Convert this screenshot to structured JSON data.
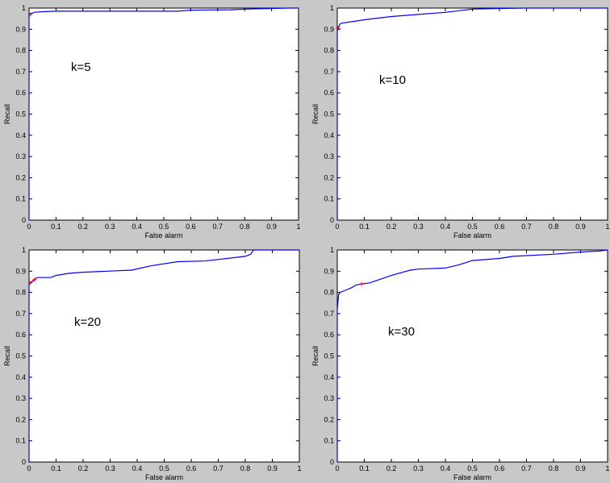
{
  "figure": {
    "background": "#c8c8c8",
    "plot_background": "#ffffff",
    "axis_color": "#000000",
    "curve_color": "#0000ff",
    "marker_color": "#ff0000"
  },
  "chart_data": [
    {
      "type": "line",
      "annotation": "k=5",
      "xlabel": "False alarm",
      "ylabel": "Recall",
      "xlim": [
        0,
        1
      ],
      "ylim": [
        0,
        1
      ],
      "xticks": [
        "0",
        "0.1",
        "0.2",
        "0.3",
        "0.4",
        "0.5",
        "0.6",
        "0.7",
        "0.8",
        "0.9",
        "1"
      ],
      "yticks": [
        "0",
        "0.1",
        "0.2",
        "0.3",
        "0.4",
        "0.5",
        "0.6",
        "0.7",
        "0.8",
        "0.9",
        "1"
      ],
      "grid": false,
      "series": [
        {
          "x": [
            0,
            0,
            0.01,
            0.02,
            0.05,
            0.1,
            0.55,
            0.6,
            0.75,
            0.8,
            0.9,
            0.97,
            1.0
          ],
          "y": [
            0,
            0.97,
            0.975,
            0.98,
            0.983,
            0.985,
            0.985,
            0.99,
            0.992,
            0.995,
            0.998,
            1.0,
            1.0
          ]
        }
      ],
      "markers": [
        {
          "x": 0.005,
          "y": 0.97
        }
      ]
    },
    {
      "type": "line",
      "annotation": "k=10",
      "xlabel": "False alarm",
      "ylabel": "Recall",
      "xlim": [
        0,
        1
      ],
      "ylim": [
        0,
        1
      ],
      "xticks": [
        "0",
        "0.1",
        "0.2",
        "0.3",
        "0.4",
        "0.5",
        "0.6",
        "0.7",
        "0.8",
        "0.9",
        "1"
      ],
      "yticks": [
        "0",
        "0.1",
        "0.2",
        "0.3",
        "0.4",
        "0.5",
        "0.6",
        "0.7",
        "0.8",
        "0.9",
        "1"
      ],
      "grid": false,
      "series": [
        {
          "x": [
            0,
            0,
            0.005,
            0.01,
            0.02,
            0.05,
            0.1,
            0.2,
            0.3,
            0.4,
            0.5,
            0.6,
            0.7,
            0.8,
            0.85,
            1.0
          ],
          "y": [
            0,
            0.9,
            0.91,
            0.925,
            0.93,
            0.935,
            0.945,
            0.96,
            0.97,
            0.98,
            0.995,
            0.998,
            1.0,
            1.0,
            1.0,
            1.0
          ]
        }
      ],
      "markers": [
        {
          "x": 0.003,
          "y": 0.905
        }
      ]
    },
    {
      "type": "line",
      "annotation": "k=20",
      "xlabel": "False alarm",
      "ylabel": "Recall",
      "xlim": [
        0,
        1
      ],
      "ylim": [
        0,
        1
      ],
      "xticks": [
        "0",
        "0.1",
        "0.2",
        "0.3",
        "0.4",
        "0.5",
        "0.6",
        "0.7",
        "0.8",
        "0.9",
        "1"
      ],
      "yticks": [
        "0",
        "0.1",
        "0.2",
        "0.3",
        "0.4",
        "0.5",
        "0.6",
        "0.7",
        "0.8",
        "0.9",
        "1"
      ],
      "grid": false,
      "series": [
        {
          "x": [
            0,
            0,
            0.01,
            0.02,
            0.03,
            0.08,
            0.1,
            0.15,
            0.2,
            0.38,
            0.45,
            0.55,
            0.65,
            0.8,
            0.82,
            0.83,
            1.0
          ],
          "y": [
            0,
            0.84,
            0.85,
            0.86,
            0.87,
            0.87,
            0.88,
            0.89,
            0.895,
            0.905,
            0.925,
            0.945,
            0.948,
            0.97,
            0.98,
            1.0,
            1.0
          ]
        }
      ],
      "markers": [
        {
          "x": 0.005,
          "y": 0.845
        },
        {
          "x": 0.02,
          "y": 0.86
        }
      ]
    },
    {
      "type": "line",
      "annotation": "k=30",
      "xlabel": "False alarm",
      "ylabel": "Recall",
      "xlim": [
        0,
        1
      ],
      "ylim": [
        0,
        1
      ],
      "xticks": [
        "0",
        "0.1",
        "0.2",
        "0.3",
        "0.4",
        "0.5",
        "0.6",
        "0.7",
        "0.8",
        "0.9",
        "1"
      ],
      "yticks": [
        "0",
        "0.1",
        "0.2",
        "0.3",
        "0.4",
        "0.5",
        "0.6",
        "0.7",
        "0.8",
        "0.9",
        "1"
      ],
      "grid": false,
      "series": [
        {
          "x": [
            0,
            0,
            0.005,
            0.01,
            0.03,
            0.05,
            0.07,
            0.09,
            0.12,
            0.2,
            0.27,
            0.3,
            0.4,
            0.45,
            0.5,
            0.6,
            0.65,
            0.8,
            0.9,
            0.97,
            1.0
          ],
          "y": [
            0,
            0.72,
            0.79,
            0.8,
            0.81,
            0.82,
            0.835,
            0.84,
            0.845,
            0.88,
            0.905,
            0.91,
            0.915,
            0.93,
            0.95,
            0.96,
            0.97,
            0.98,
            0.99,
            0.995,
            1.0
          ]
        }
      ],
      "markers": [
        {
          "x": 0.09,
          "y": 0.84
        }
      ]
    }
  ]
}
